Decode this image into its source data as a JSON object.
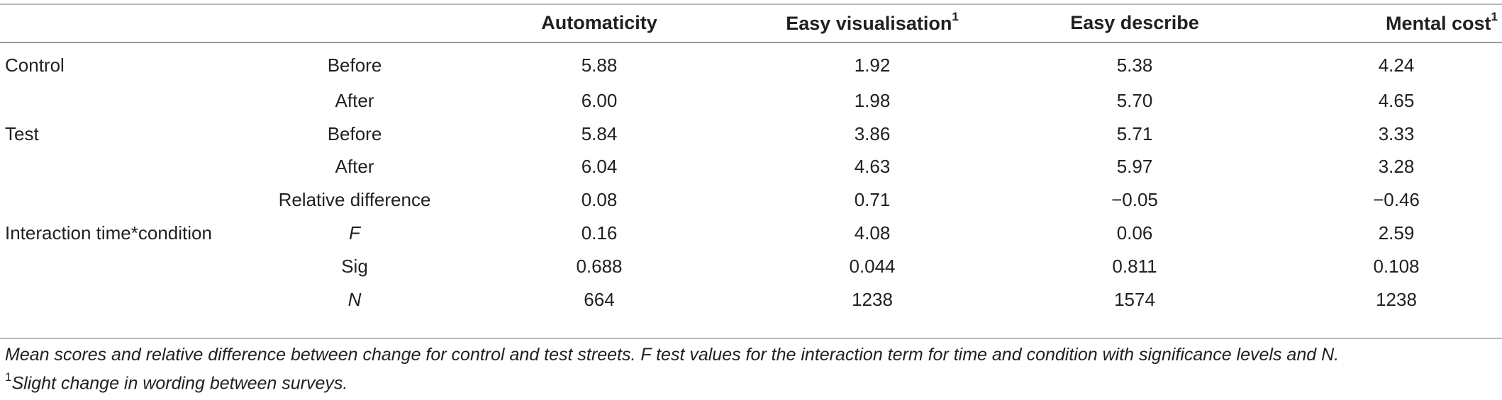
{
  "table": {
    "columns": [
      "",
      "",
      "Automaticity",
      "Easy visualisation",
      "Easy describe",
      "Mental cost"
    ],
    "column_superscripts": [
      "",
      "",
      "",
      "1",
      "",
      "1"
    ],
    "rows": [
      {
        "group": "Control",
        "sub": "Before",
        "sub_italic": false,
        "values": [
          "5.88",
          "1.92",
          "5.38",
          "4.24"
        ]
      },
      {
        "group": "",
        "sub": "After",
        "sub_italic": false,
        "values": [
          "6.00",
          "1.98",
          "5.70",
          "4.65"
        ]
      },
      {
        "group": "Test",
        "sub": "Before",
        "sub_italic": false,
        "values": [
          "5.84",
          "3.86",
          "5.71",
          "3.33"
        ]
      },
      {
        "group": "",
        "sub": "After",
        "sub_italic": false,
        "values": [
          "6.04",
          "4.63",
          "5.97",
          "3.28"
        ]
      },
      {
        "group": "",
        "sub": "Relative difference",
        "sub_italic": false,
        "values": [
          "0.08",
          "0.71",
          "−0.05",
          "−0.46"
        ]
      },
      {
        "group": "Interaction time*condition",
        "sub": "F",
        "sub_italic": true,
        "values": [
          "0.16",
          "4.08",
          "0.06",
          "2.59"
        ]
      },
      {
        "group": "",
        "sub": "Sig",
        "sub_italic": false,
        "values": [
          "0.688",
          "0.044",
          "0.811",
          "0.108"
        ]
      },
      {
        "group": "",
        "sub": "N",
        "sub_italic": true,
        "values": [
          "664",
          "1238",
          "1574",
          "1238"
        ]
      }
    ]
  },
  "footnotes": {
    "caption": "Mean scores and relative difference between change for control and test streets. F test values for the interaction term for time and condition with significance levels and N.",
    "note_marker": "1",
    "note_text": "Slight change in wording between surveys."
  }
}
